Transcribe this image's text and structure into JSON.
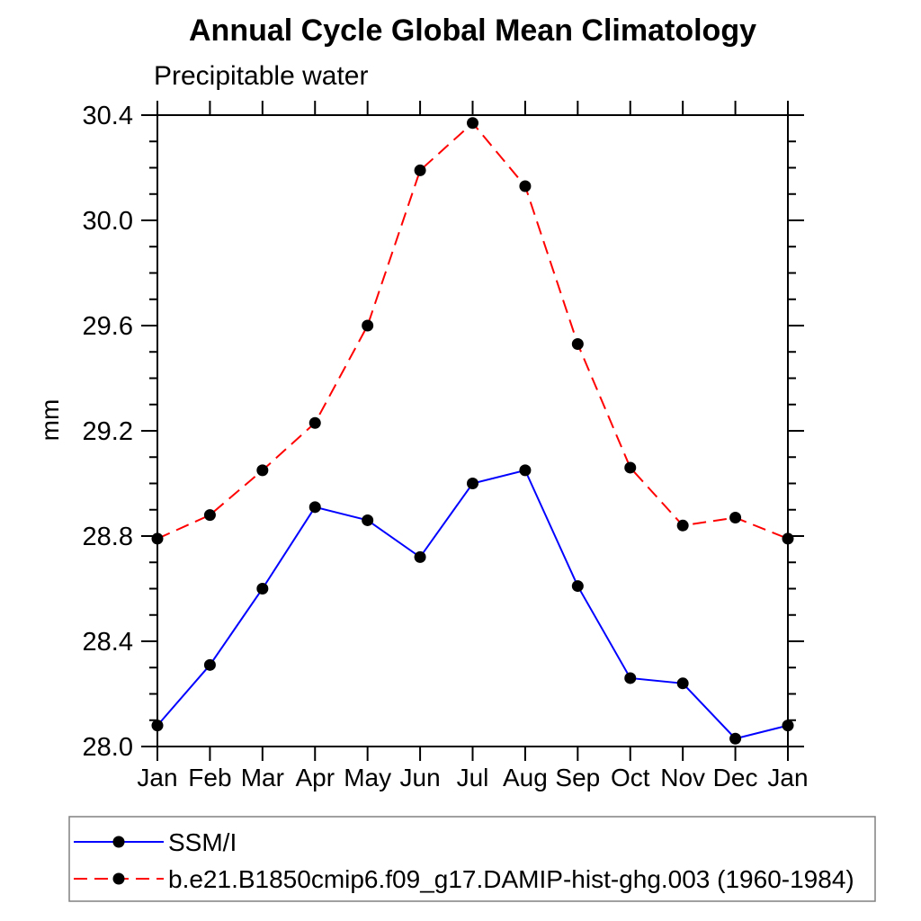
{
  "chart_data": {
    "type": "line",
    "title": "Annual Cycle Global Mean Climatology",
    "subtitle": "Precipitable water",
    "ylabel": "mm",
    "xlabel": "",
    "x_categories": [
      "Jan",
      "Feb",
      "Mar",
      "Apr",
      "May",
      "Jun",
      "Jul",
      "Aug",
      "Sep",
      "Oct",
      "Nov",
      "Dec",
      "Jan"
    ],
    "ylim": [
      28.0,
      30.4
    ],
    "ytick_major": [
      28.0,
      28.4,
      28.8,
      29.2,
      29.6,
      30.0,
      30.4
    ],
    "ytick_major_labels": [
      "28.0",
      "28.4",
      "28.8",
      "29.2",
      "29.6",
      "30.0",
      "30.4"
    ],
    "ytick_minor_step": 0.1,
    "grid": false,
    "legend_position": "bottom",
    "frame_color": "#000000",
    "legend_border_color": "#808080",
    "series": [
      {
        "name": "SSM/I",
        "color": "#0000ff",
        "line_style": "solid",
        "marker": "circle",
        "marker_color": "#000000",
        "values": [
          28.08,
          28.31,
          28.6,
          28.91,
          28.86,
          28.72,
          29.0,
          29.05,
          28.61,
          28.26,
          28.24,
          28.03,
          28.08
        ]
      },
      {
        "name": "b.e21.B1850cmip6.f09_g17.DAMIP-hist-ghg.003 (1960-1984)",
        "color": "#ff0000",
        "line_style": "dashed",
        "marker": "circle",
        "marker_color": "#000000",
        "values": [
          28.79,
          28.88,
          29.05,
          29.23,
          29.6,
          30.19,
          30.37,
          30.13,
          29.53,
          29.06,
          28.84,
          28.87,
          28.79
        ]
      }
    ]
  }
}
